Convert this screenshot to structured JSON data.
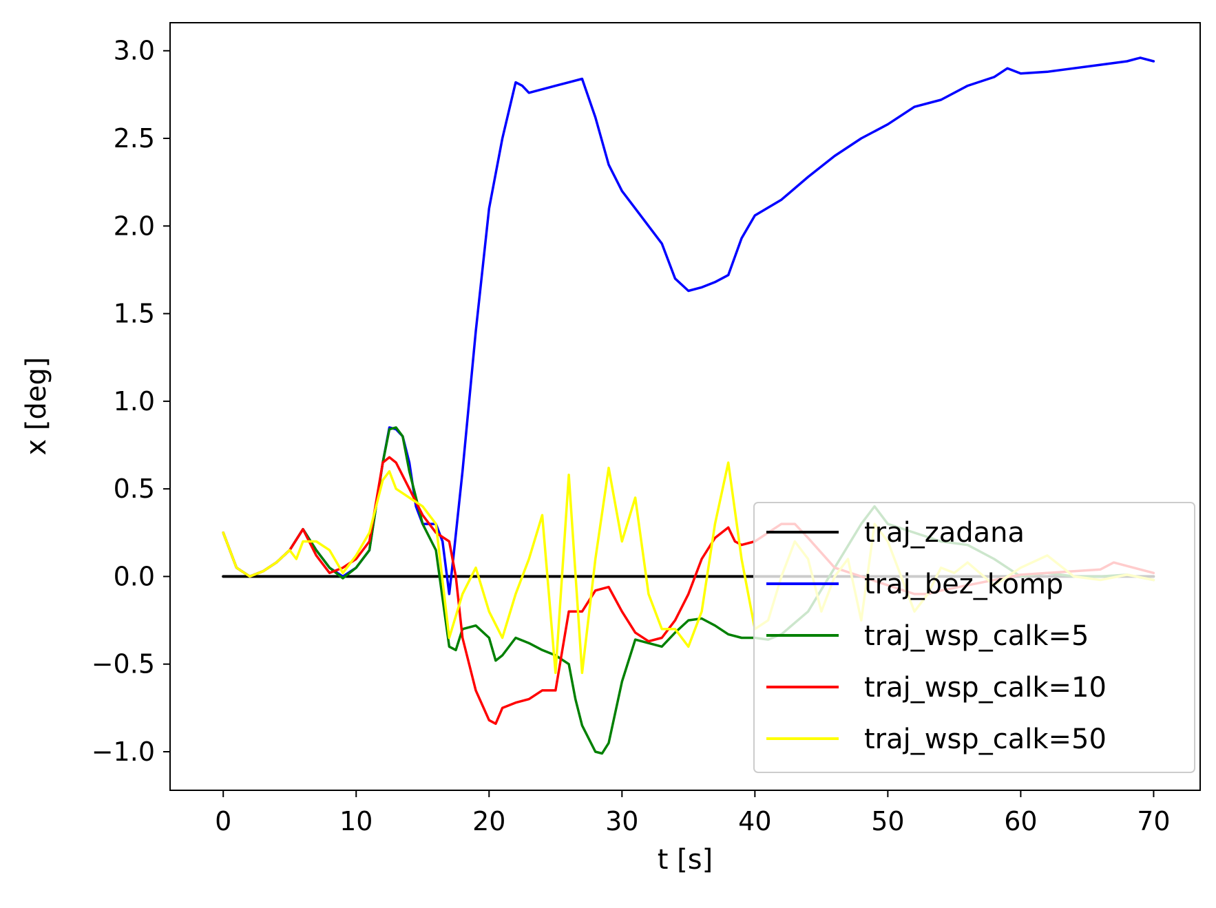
{
  "chart_data": {
    "type": "line",
    "title": "",
    "xlabel": "t [s]",
    "ylabel": "x [deg]",
    "xlim": [
      -4,
      73.5
    ],
    "ylim": [
      -1.22,
      3.16
    ],
    "xticks": [
      0,
      10,
      20,
      30,
      40,
      50,
      60,
      70
    ],
    "xtick_labels": [
      "0",
      "10",
      "20",
      "30",
      "40",
      "50",
      "60",
      "70"
    ],
    "yticks": [
      -1.0,
      -0.5,
      0.0,
      0.5,
      1.0,
      1.5,
      2.0,
      2.5,
      3.0
    ],
    "ytick_labels": [
      "−1.0",
      "−0.5",
      "0.0",
      "0.5",
      "1.0",
      "1.5",
      "2.0",
      "2.5",
      "3.0"
    ],
    "grid": false,
    "legend_position": "lower-right",
    "series": [
      {
        "name": "traj_zadana",
        "color": "#000000",
        "x": [
          0,
          70
        ],
        "y": [
          0,
          0
        ]
      },
      {
        "name": "traj_bez_komp",
        "color": "#0000ff",
        "x": [
          0,
          1,
          2,
          3,
          4,
          5,
          6,
          7,
          8,
          9,
          10,
          11,
          12,
          12.5,
          13,
          13.5,
          14,
          14.5,
          15,
          16,
          16.5,
          17,
          17.3,
          18,
          19,
          20,
          21,
          22,
          22.5,
          23,
          24,
          25,
          26,
          27,
          28,
          29,
          30,
          31,
          32,
          33,
          34,
          35,
          36,
          37,
          38,
          39,
          40,
          42,
          44,
          46,
          48,
          50,
          52,
          54,
          56,
          58,
          59,
          60,
          62,
          64,
          66,
          68,
          69,
          70
        ],
        "y": [
          0.25,
          0.05,
          0.0,
          0.03,
          0.08,
          0.15,
          0.27,
          0.15,
          0.05,
          0.0,
          0.05,
          0.15,
          0.65,
          0.85,
          0.84,
          0.8,
          0.65,
          0.4,
          0.3,
          0.3,
          0.2,
          -0.1,
          0.1,
          0.6,
          1.4,
          2.1,
          2.5,
          2.82,
          2.8,
          2.76,
          2.78,
          2.8,
          2.82,
          2.84,
          2.62,
          2.35,
          2.2,
          2.1,
          2.0,
          1.9,
          1.7,
          1.63,
          1.65,
          1.68,
          1.72,
          1.93,
          2.06,
          2.15,
          2.28,
          2.4,
          2.5,
          2.58,
          2.68,
          2.72,
          2.8,
          2.85,
          2.9,
          2.87,
          2.88,
          2.9,
          2.92,
          2.94,
          2.96,
          2.94
        ]
      },
      {
        "name": "traj_wsp_calk=5",
        "color": "#008000",
        "x": [
          0,
          1,
          2,
          3,
          4,
          5,
          6,
          7,
          8,
          9,
          10,
          11,
          12,
          12.5,
          13,
          13.5,
          14,
          15,
          16,
          17,
          17.5,
          18,
          19,
          20,
          20.5,
          21,
          22,
          23,
          24,
          25,
          26,
          26.5,
          27,
          28,
          28.5,
          29,
          30,
          31,
          32,
          33,
          34,
          35,
          36,
          37,
          38,
          39,
          40,
          41,
          42,
          44,
          46,
          48,
          49,
          50,
          52,
          54,
          56,
          58,
          60,
          62,
          64,
          66,
          68,
          70
        ],
        "y": [
          0.25,
          0.05,
          0.0,
          0.03,
          0.08,
          0.15,
          0.27,
          0.15,
          0.05,
          -0.01,
          0.05,
          0.15,
          0.65,
          0.84,
          0.85,
          0.8,
          0.6,
          0.3,
          0.15,
          -0.4,
          -0.42,
          -0.3,
          -0.28,
          -0.35,
          -0.48,
          -0.45,
          -0.35,
          -0.38,
          -0.42,
          -0.45,
          -0.5,
          -0.7,
          -0.85,
          -1.0,
          -1.01,
          -0.95,
          -0.6,
          -0.36,
          -0.38,
          -0.4,
          -0.32,
          -0.25,
          -0.24,
          -0.28,
          -0.33,
          -0.35,
          -0.35,
          -0.36,
          -0.33,
          -0.2,
          0.05,
          0.3,
          0.4,
          0.3,
          0.25,
          0.2,
          0.18,
          0.1,
          0.0,
          0.02,
          0.0,
          0.0,
          0.01,
          -0.02
        ]
      },
      {
        "name": "traj_wsp_calk=10",
        "color": "#ff0000",
        "x": [
          0,
          1,
          2,
          3,
          4,
          5,
          6,
          7,
          8,
          9,
          10,
          11,
          12,
          12.5,
          13,
          14,
          15,
          16,
          17,
          17.5,
          18,
          19,
          20,
          20.5,
          21,
          22,
          23,
          24,
          25,
          26,
          26.5,
          27,
          28,
          29,
          30,
          31,
          32,
          33,
          34,
          35,
          36,
          37,
          38,
          38.5,
          39,
          40,
          42,
          43,
          44,
          46,
          48,
          50,
          52,
          53,
          54,
          56,
          58,
          60,
          62,
          64,
          66,
          67,
          68,
          70
        ],
        "y": [
          0.25,
          0.05,
          0.0,
          0.03,
          0.08,
          0.15,
          0.27,
          0.12,
          0.02,
          0.05,
          0.1,
          0.2,
          0.65,
          0.68,
          0.65,
          0.5,
          0.35,
          0.25,
          0.2,
          0.0,
          -0.35,
          -0.65,
          -0.82,
          -0.84,
          -0.75,
          -0.72,
          -0.7,
          -0.65,
          -0.65,
          -0.2,
          -0.2,
          -0.2,
          -0.08,
          -0.06,
          -0.2,
          -0.32,
          -0.37,
          -0.35,
          -0.25,
          -0.1,
          0.1,
          0.22,
          0.28,
          0.2,
          0.18,
          0.2,
          0.3,
          0.3,
          0.22,
          0.05,
          0.0,
          -0.05,
          -0.1,
          -0.1,
          -0.08,
          -0.05,
          -0.02,
          0.01,
          0.02,
          0.03,
          0.04,
          0.08,
          0.06,
          0.02
        ]
      },
      {
        "name": "traj_wsp_calk=50",
        "color": "#ffff00",
        "x": [
          0,
          1,
          2,
          3,
          4,
          5,
          5.5,
          6,
          7,
          8,
          9,
          10,
          11,
          12,
          12.5,
          13,
          14,
          15,
          16,
          17,
          18,
          19,
          20,
          21,
          22,
          23,
          24,
          25,
          26,
          27,
          28,
          29,
          30,
          31,
          32,
          33,
          34,
          35,
          36,
          37,
          38,
          39,
          40,
          41,
          42,
          43,
          44,
          45,
          46,
          47,
          48,
          49,
          50,
          51,
          52,
          53,
          54,
          55,
          56,
          58,
          60,
          62,
          64,
          66,
          68,
          70
        ],
        "y": [
          0.25,
          0.05,
          0.0,
          0.03,
          0.08,
          0.15,
          0.1,
          0.2,
          0.2,
          0.15,
          0.02,
          0.12,
          0.25,
          0.55,
          0.6,
          0.5,
          0.45,
          0.4,
          0.3,
          -0.35,
          -0.1,
          0.05,
          -0.2,
          -0.35,
          -0.1,
          0.1,
          0.35,
          -0.55,
          0.58,
          -0.55,
          0.1,
          0.62,
          0.2,
          0.45,
          -0.1,
          -0.3,
          -0.3,
          -0.4,
          -0.2,
          0.3,
          0.65,
          0.1,
          -0.3,
          -0.25,
          0.0,
          0.2,
          0.1,
          -0.2,
          0.0,
          0.1,
          -0.25,
          0.3,
          0.2,
          0.0,
          -0.2,
          -0.1,
          0.05,
          0.02,
          0.08,
          -0.05,
          0.05,
          0.12,
          0.0,
          -0.02,
          0.01,
          -0.02
        ]
      }
    ]
  }
}
